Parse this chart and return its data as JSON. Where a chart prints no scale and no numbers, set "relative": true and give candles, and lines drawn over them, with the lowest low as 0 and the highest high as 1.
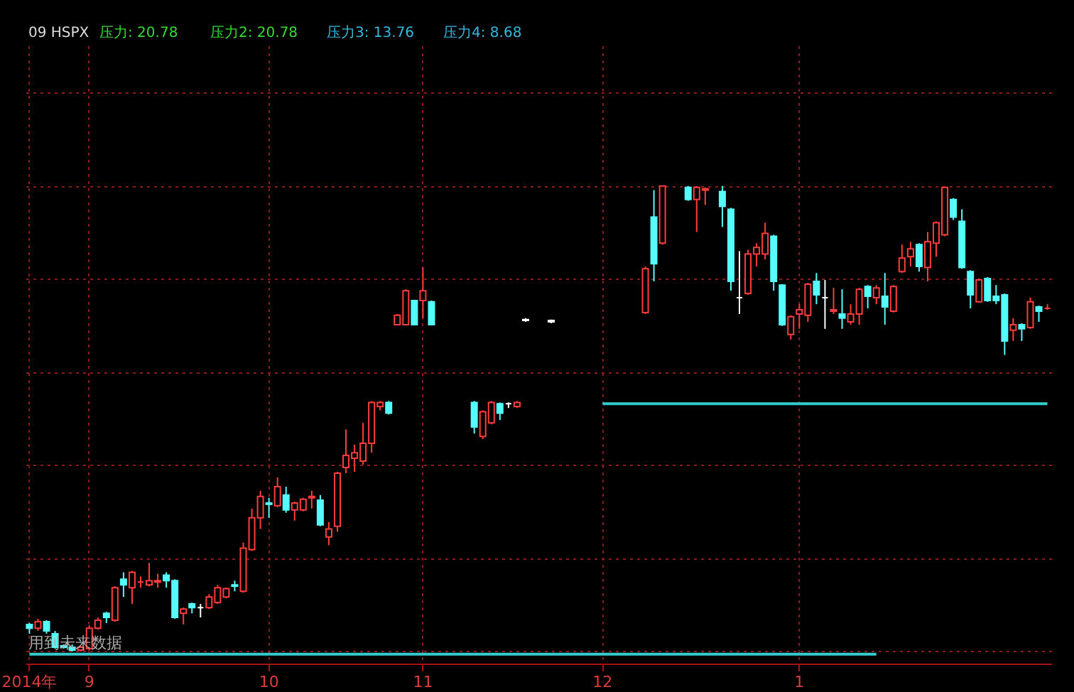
{
  "chart_data": {
    "type": "candlestick",
    "relative": true,
    "grid": true,
    "title": "09 HSPX",
    "annotations": [
      "压力: 20.78",
      "压力2: 20.78",
      "压力3: 13.76",
      "压力4: 8.68",
      "用到未来数据"
    ],
    "categories": [
      "2014年",
      null,
      null,
      null,
      null,
      null,
      null,
      "9",
      null,
      null,
      null,
      null,
      null,
      null,
      null,
      null,
      null,
      null,
      null,
      null,
      null,
      null,
      null,
      null,
      null,
      null,
      null,
      null,
      "10",
      null,
      null,
      null,
      null,
      null,
      null,
      null,
      null,
      null,
      null,
      null,
      null,
      null,
      null,
      null,
      null,
      null,
      "11",
      null,
      null,
      null,
      null,
      null,
      null,
      null,
      null,
      null,
      null,
      null,
      null,
      null,
      null,
      null,
      null,
      null,
      null,
      null,
      null,
      "12",
      null,
      null,
      null,
      null,
      null,
      null,
      null,
      null,
      null,
      null,
      null,
      null,
      null,
      null,
      null,
      null,
      null,
      null,
      null,
      null,
      null,
      null,
      "1",
      null,
      null,
      null,
      null,
      null,
      null,
      null,
      null,
      null,
      null,
      null,
      null,
      null,
      null,
      null,
      null,
      null,
      null,
      null,
      null,
      null,
      null,
      null,
      null,
      null,
      null,
      null,
      null,
      null
    ],
    "ohlc": [
      [
        0.058,
        0.061,
        0.038,
        0.05
      ],
      [
        0.05,
        0.07,
        0.044,
        0.064
      ],
      [
        0.064,
        0.067,
        0.038,
        0.044
      ],
      [
        0.038,
        0.044,
        0.006,
        0.009
      ],
      [
        0.012,
        0.015,
        0.006,
        0.009
      ],
      [
        0.009,
        0.015,
        0,
        0.003
      ],
      [
        0.003,
        0.012,
        0,
        0.009
      ],
      [
        0.006,
        0.056,
        0.003,
        0.05
      ],
      [
        0.05,
        0.073,
        0.047,
        0.067
      ],
      [
        0.082,
        0.085,
        0.061,
        0.073
      ],
      [
        0.067,
        0.14,
        0.064,
        0.137
      ],
      [
        0.155,
        0.17,
        0.117,
        0.143
      ],
      [
        0.137,
        0.173,
        0.102,
        0.17
      ],
      [
        0.149,
        0.161,
        0.137,
        0.149
      ],
      [
        0.143,
        0.19,
        0.14,
        0.152
      ],
      [
        0.149,
        0.167,
        0.137,
        0.152
      ],
      [
        0.164,
        0.17,
        0.137,
        0.152
      ],
      [
        0.152,
        0.155,
        0.07,
        0.073
      ],
      [
        0.082,
        0.094,
        0.058,
        0.091
      ],
      [
        0.102,
        0.105,
        0.082,
        0.094
      ],
      [
        0.094,
        0.102,
        0.073,
        0.094
      ],
      [
        0.094,
        0.123,
        0.091,
        0.117
      ],
      [
        0.105,
        0.143,
        0.102,
        0.137
      ],
      [
        0.117,
        0.137,
        0.114,
        0.135
      ],
      [
        0.143,
        0.152,
        0.129,
        0.14
      ],
      [
        0.129,
        0.234,
        0.126,
        0.222
      ],
      [
        0.219,
        0.307,
        0.216,
        0.287
      ],
      [
        0.287,
        0.345,
        0.263,
        0.333
      ],
      [
        0.319,
        0.33,
        0.287,
        0.316
      ],
      [
        0.313,
        0.374,
        0.31,
        0.354
      ],
      [
        0.336,
        0.354,
        0.298,
        0.304
      ],
      [
        0.304,
        0.322,
        0.281,
        0.319
      ],
      [
        0.304,
        0.33,
        0.301,
        0.327
      ],
      [
        0.33,
        0.345,
        0.307,
        0.333
      ],
      [
        0.325,
        0.336,
        0.269,
        0.272
      ],
      [
        0.246,
        0.278,
        0.228,
        0.263
      ],
      [
        0.269,
        0.386,
        0.257,
        0.383
      ],
      [
        0.395,
        0.477,
        0.383,
        0.421
      ],
      [
        0.415,
        0.444,
        0.386,
        0.427
      ],
      [
        0.409,
        0.491,
        0.401,
        0.447
      ],
      [
        0.447,
        0.538,
        0.427,
        0.535
      ],
      [
        0.526,
        0.538,
        0.518,
        0.535
      ],
      [
        0.535,
        0.538,
        0.509,
        0.512
      ],
      [
        0.702,
        0.725,
        0.702,
        0.722
      ],
      [
        0.702,
        0.778,
        0.702,
        0.775
      ],
      [
        0.754,
        0.754,
        0.702,
        0.702
      ],
      [
        0.754,
        0.825,
        0.716,
        0.775
      ],
      [
        0.751,
        0.754,
        0.702,
        0.702
      ],
      null,
      null,
      null,
      null,
      [
        0.535,
        0.538,
        0.468,
        0.482
      ],
      [
        0.462,
        0.518,
        0.456,
        0.515
      ],
      [
        0.491,
        0.538,
        0.488,
        0.535
      ],
      [
        0.532,
        0.535,
        0.497,
        0.512
      ],
      [
        0.532,
        0.535,
        0.523,
        0.532
      ],
      [
        0.526,
        0.538,
        0.523,
        0.535
      ],
      [
        0.711,
        0.716,
        0.708,
        0.713
      ],
      null,
      null,
      [
        0.708,
        0.713,
        0.705,
        0.711
      ],
      null,
      null,
      null,
      null,
      null,
      null,
      null,
      null,
      null,
      null,
      [
        0.728,
        0.827,
        0.725,
        0.822
      ],
      [
        0.933,
        0.991,
        0.795,
        0.833
      ],
      [
        0.877,
        1,
        0.874,
        1
      ],
      null,
      null,
      [
        0.997,
        1,
        0.968,
        0.971
      ],
      [
        0.971,
        1,
        0.901,
        0.997
      ],
      [
        0.991,
        0.997,
        0.959,
        0.994
      ],
      null,
      [
        0.988,
        1,
        0.912,
        0.956
      ],
      [
        0.95,
        0.953,
        0.775,
        0.795
      ],
      [
        0.76,
        0.86,
        0.725,
        0.76
      ],
      [
        0.769,
        0.863,
        0.766,
        0.854
      ],
      [
        0.854,
        0.877,
        0.827,
        0.868
      ],
      [
        0.854,
        0.921,
        0.842,
        0.898
      ],
      [
        0.892,
        0.895,
        0.775,
        0.795
      ],
      [
        0.787,
        0.789,
        0.699,
        0.702
      ],
      [
        0.681,
        0.722,
        0.67,
        0.719
      ],
      [
        0.725,
        0.746,
        0.693,
        0.734
      ],
      [
        0.722,
        0.792,
        0.708,
        0.789
      ],
      [
        0.795,
        0.813,
        0.746,
        0.766
      ],
      [
        0.76,
        0.798,
        0.693,
        0.76
      ],
      [
        0.731,
        0.781,
        0.725,
        0.734
      ],
      [
        0.725,
        0.778,
        0.693,
        0.716
      ],
      [
        0.708,
        0.746,
        0.702,
        0.725
      ],
      [
        0.725,
        0.781,
        0.702,
        0.778
      ],
      [
        0.784,
        0.787,
        0.737,
        0.763
      ],
      [
        0.76,
        0.787,
        0.746,
        0.781
      ],
      [
        0.763,
        0.813,
        0.702,
        0.74
      ],
      [
        0.731,
        0.787,
        0.728,
        0.784
      ],
      [
        0.816,
        0.874,
        0.813,
        0.845
      ],
      [
        0.848,
        0.88,
        0.827,
        0.865
      ],
      [
        0.874,
        0.877,
        0.816,
        0.827
      ],
      [
        0.825,
        0.901,
        0.795,
        0.88
      ],
      [
        0.877,
        0.924,
        0.848,
        0.921
      ],
      [
        0.895,
        0.997,
        0.892,
        0.997
      ],
      [
        0.971,
        0.974,
        0.927,
        0.933
      ],
      [
        0.924,
        0.95,
        0.822,
        0.825
      ],
      [
        0.816,
        0.819,
        0.737,
        0.766
      ],
      [
        0.751,
        0.801,
        0.749,
        0.798
      ],
      [
        0.801,
        0.804,
        0.751,
        0.754
      ],
      [
        0.763,
        0.787,
        0.746,
        0.754
      ],
      [
        0.766,
        0.769,
        0.637,
        0.667
      ],
      [
        0.69,
        0.716,
        0.667,
        0.702
      ],
      [
        0.702,
        0.705,
        0.667,
        0.693
      ],
      [
        0.696,
        0.76,
        0.693,
        0.751
      ],
      [
        0.74,
        0.743,
        0.708,
        0.731
      ],
      [
        0.737,
        0.746,
        0.734,
        0.737
      ]
    ],
    "colors": [
      "#54fcfc",
      "#ff3c3c",
      "#54fcfc",
      "#54fcfc",
      "#54fcfc",
      "#54fcfc",
      "#ff3c3c",
      "#ff3c3c",
      "#ff3c3c",
      "#54fcfc",
      "#ff3c3c",
      "#54fcfc",
      "#ff3c3c",
      "#ff3c3c",
      "#ff3c3c",
      "#ff3c3c",
      "#54fcfc",
      "#54fcfc",
      "#ff3c3c",
      "#54fcfc",
      "#ffffff",
      "#ff3c3c",
      "#ff3c3c",
      "#ff3c3c",
      "#54fcfc",
      "#ff3c3c",
      "#ff3c3c",
      "#ff3c3c",
      "#54fcfc",
      "#ff3c3c",
      "#54fcfc",
      "#ff3c3c",
      "#ff3c3c",
      "#ff3c3c",
      "#54fcfc",
      "#ff3c3c",
      "#ff3c3c",
      "#ff3c3c",
      "#ff3c3c",
      "#ff3c3c",
      "#ff3c3c",
      "#ff3c3c",
      "#54fcfc",
      "#ff3c3c",
      "#ff3c3c",
      "#54fcfc",
      "#ff3c3c",
      "#54fcfc",
      null,
      null,
      null,
      null,
      "#54fcfc",
      "#ff3c3c",
      "#ff3c3c",
      "#54fcfc",
      "#ffffff",
      "#ff3c3c",
      "#ffffff",
      null,
      null,
      "#ffffff",
      null,
      null,
      null,
      null,
      null,
      null,
      null,
      null,
      null,
      null,
      "#ff3c3c",
      "#54fcfc",
      "#ff3c3c",
      null,
      null,
      "#54fcfc",
      "#ff3c3c",
      "#ff3c3c",
      null,
      "#54fcfc",
      "#54fcfc",
      "#ffffff",
      "#ff3c3c",
      "#ff3c3c",
      "#ff3c3c",
      "#54fcfc",
      "#54fcfc",
      "#ff3c3c",
      "#ff3c3c",
      "#ff3c3c",
      "#54fcfc",
      "#ffffff",
      "#ff3c3c",
      "#54fcfc",
      "#ff3c3c",
      "#ff3c3c",
      "#54fcfc",
      "#ff3c3c",
      "#54fcfc",
      "#ff3c3c",
      "#ff3c3c",
      "#ff3c3c",
      "#54fcfc",
      "#ff3c3c",
      "#ff3c3c",
      "#ff3c3c",
      "#54fcfc",
      "#54fcfc",
      "#54fcfc",
      "#ff3c3c",
      "#54fcfc",
      "#54fcfc",
      "#54fcfc",
      "#ff3c3c",
      "#54fcfc",
      "#ff3c3c",
      "#54fcfc",
      "#ff3c3c"
    ],
    "series": [
      {
        "type": "line",
        "color": "#33cccc",
        "values": [
          -0.006,
          -0.006,
          -0.006,
          -0.006,
          -0.006,
          -0.006,
          -0.006,
          -0.006,
          -0.006,
          -0.006,
          -0.006,
          -0.006,
          -0.006,
          -0.006,
          -0.006,
          -0.006,
          -0.006,
          -0.006,
          -0.006,
          -0.006,
          -0.006,
          -0.006,
          -0.006,
          -0.006,
          -0.006,
          -0.006,
          -0.006,
          -0.006,
          -0.006,
          -0.006,
          -0.006,
          -0.006,
          -0.006,
          -0.006,
          -0.006,
          -0.006,
          -0.006,
          -0.006,
          -0.006,
          -0.006,
          -0.006,
          -0.006,
          -0.006,
          -0.006,
          -0.006,
          -0.006,
          -0.006,
          -0.006,
          -0.006,
          -0.006,
          -0.006,
          -0.006,
          -0.006,
          -0.006,
          -0.006,
          -0.006,
          -0.006,
          -0.006,
          -0.006,
          -0.006,
          -0.006,
          -0.006,
          -0.006,
          -0.006,
          -0.006,
          -0.006,
          -0.006,
          -0.006,
          -0.006,
          -0.006,
          -0.006,
          -0.006,
          -0.006,
          -0.006,
          -0.006,
          -0.006,
          -0.006,
          -0.006,
          -0.006,
          -0.006,
          -0.006,
          -0.006,
          -0.006,
          -0.006,
          -0.006,
          -0.006,
          -0.006,
          -0.006,
          -0.006,
          -0.006,
          -0.006,
          -0.006,
          -0.006,
          -0.006,
          -0.006,
          -0.006,
          -0.006,
          -0.006,
          -0.006,
          -0.006,
          null,
          null,
          null,
          null,
          null,
          null,
          null,
          null,
          null,
          null,
          null,
          null,
          null,
          null,
          null,
          null,
          null,
          null,
          null,
          null
        ]
      },
      {
        "type": "line",
        "color": "#33cccc",
        "values": [
          null,
          null,
          null,
          null,
          null,
          null,
          null,
          null,
          null,
          null,
          null,
          null,
          null,
          null,
          null,
          null,
          null,
          null,
          null,
          null,
          null,
          null,
          null,
          null,
          null,
          null,
          null,
          null,
          null,
          null,
          null,
          null,
          null,
          null,
          null,
          null,
          null,
          null,
          null,
          null,
          null,
          null,
          null,
          null,
          null,
          null,
          null,
          null,
          null,
          null,
          null,
          null,
          null,
          null,
          null,
          null,
          null,
          null,
          null,
          null,
          null,
          null,
          null,
          null,
          null,
          null,
          null,
          0.532,
          0.532,
          0.532,
          0.532,
          0.532,
          0.532,
          0.532,
          0.532,
          0.532,
          0.532,
          0.532,
          0.532,
          0.532,
          0.532,
          0.532,
          0.532,
          0.532,
          0.532,
          0.532,
          0.532,
          0.532,
          0.532,
          0.532,
          0.532,
          0.532,
          0.532,
          0.532,
          0.532,
          0.532,
          0.532,
          0.532,
          0.532,
          0.532,
          0.532,
          0.532,
          0.532,
          0.532,
          0.532,
          0.532,
          0.532,
          0.532,
          0.532,
          0.532,
          0.532,
          0.532,
          0.532,
          0.532,
          0.532,
          0.532,
          0.532,
          0.532,
          0.532,
          0.532
        ]
      }
    ]
  }
}
